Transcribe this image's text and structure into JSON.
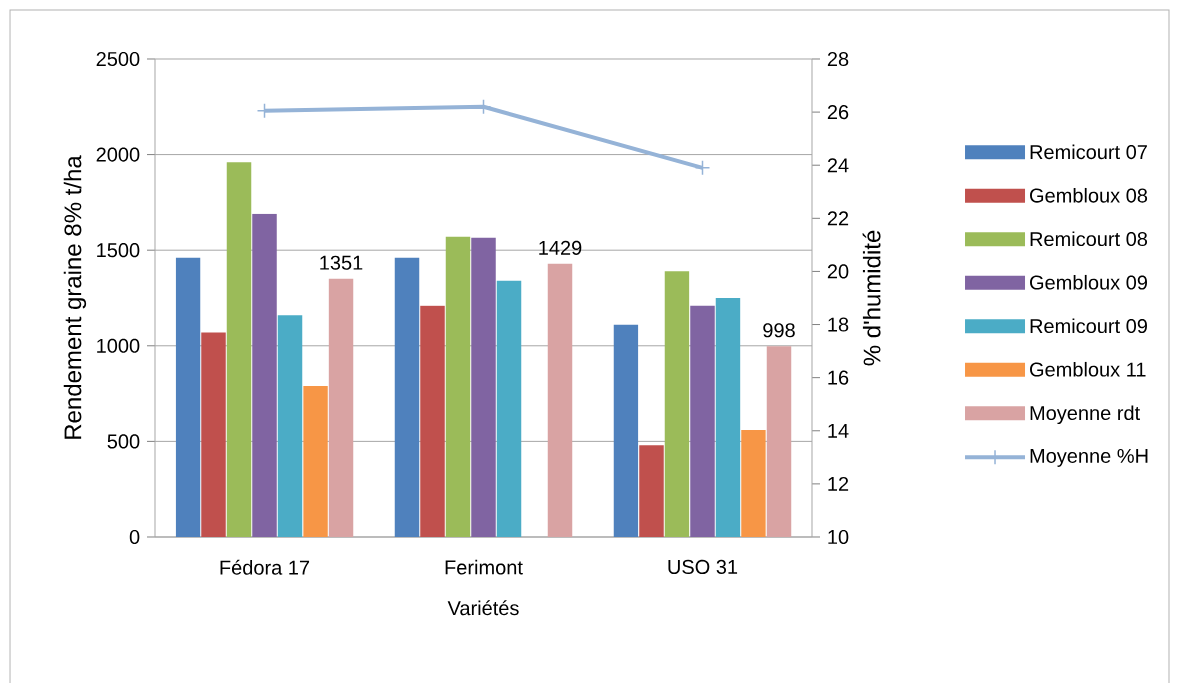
{
  "chart_data": {
    "type": "bar",
    "xlabel": "Variétés",
    "ylabel": "Rendement graine 8% t/ha",
    "y2label": "% d'humidité",
    "categories": [
      "Fédora 17",
      "Ferimont",
      "USO 31"
    ],
    "ylim": [
      0,
      2500
    ],
    "yticks": [
      0,
      500,
      1000,
      1500,
      2000,
      2500
    ],
    "y2lim": [
      10,
      28
    ],
    "y2ticks": [
      10,
      12,
      14,
      16,
      18,
      20,
      22,
      24,
      26,
      28
    ],
    "grid": "y",
    "legend": "right",
    "series": [
      {
        "name": "Remicourt 07",
        "color": "#4f81bd",
        "values": [
          1460,
          1460,
          1110
        ]
      },
      {
        "name": "Gembloux 08",
        "color": "#c0504d",
        "values": [
          1070,
          1210,
          480
        ]
      },
      {
        "name": "Remicourt 08",
        "color": "#9bbb59",
        "values": [
          1960,
          1570,
          1390
        ]
      },
      {
        "name": "Gembloux 09",
        "color": "#8064a2",
        "values": [
          1690,
          1565,
          1210
        ]
      },
      {
        "name": "Remicourt 09",
        "color": "#4bacc6",
        "values": [
          1160,
          1340,
          1250
        ]
      },
      {
        "name": "Gembloux 11",
        "color": "#f79646",
        "values": [
          790,
          null,
          560
        ]
      },
      {
        "name": "Moyenne rdt",
        "color": "#d9a3a3",
        "values": [
          1351,
          1429,
          998
        ],
        "value_labels": [
          "1351",
          "1429",
          "998"
        ]
      },
      {
        "name": "Moyenne %H",
        "color": "#95b3d7",
        "type": "line",
        "axis": "y2",
        "marker": "cross",
        "line_style": "solid",
        "values": [
          26.05,
          26.2,
          23.9
        ]
      }
    ]
  }
}
